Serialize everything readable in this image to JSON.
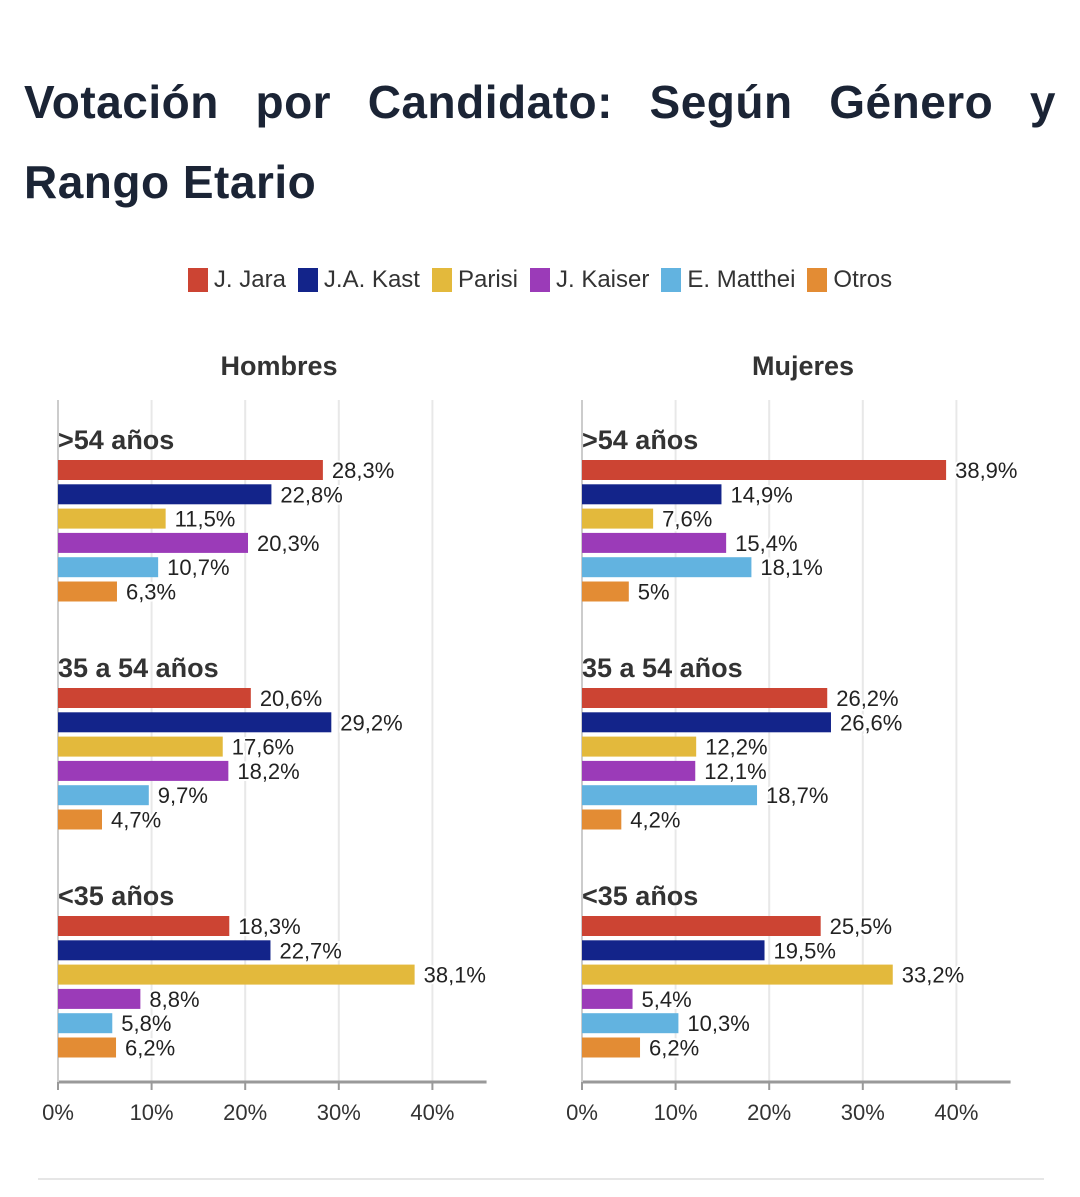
{
  "title": "Votación por Candidato: Según Género y Rango Etario",
  "legend": [
    {
      "name": "J. Jara",
      "color": "#cc4433"
    },
    {
      "name": "J.A. Kast",
      "color": "#13248a"
    },
    {
      "name": "Parisi",
      "color": "#e3b93c"
    },
    {
      "name": "J. Kaiser",
      "color": "#9b3bb8"
    },
    {
      "name": "E. Matthei",
      "color": "#62b3e0"
    },
    {
      "name": "Otros",
      "color": "#e38c34"
    }
  ],
  "chart_data": [
    {
      "type": "bar",
      "orientation": "horizontal",
      "title": "Hombres",
      "xlim": [
        0,
        46
      ],
      "xticks": [
        "0%",
        "10%",
        "20%",
        "30%",
        "40%"
      ],
      "grid": true,
      "groups": [
        {
          "label": ">54 años",
          "values": [
            28.3,
            22.8,
            11.5,
            20.3,
            10.7,
            6.3
          ],
          "labels": [
            "28,3%",
            "22,8%",
            "11,5%",
            "20,3%",
            "10,7%",
            "6,3%"
          ]
        },
        {
          "label": "35 a 54 años",
          "values": [
            20.6,
            29.2,
            17.6,
            18.2,
            9.7,
            4.7
          ],
          "labels": [
            "20,6%",
            "29,2%",
            "17,6%",
            "18,2%",
            "9,7%",
            "4,7%"
          ]
        },
        {
          "label": "<35 años",
          "values": [
            18.3,
            22.7,
            38.1,
            8.8,
            5.8,
            6.2
          ],
          "labels": [
            "18,3%",
            "22,7%",
            "38,1%",
            "8,8%",
            "5,8%",
            "6,2%"
          ]
        }
      ]
    },
    {
      "type": "bar",
      "orientation": "horizontal",
      "title": "Mujeres",
      "xlim": [
        0,
        46
      ],
      "xticks": [
        "0%",
        "10%",
        "20%",
        "30%",
        "40%"
      ],
      "grid": true,
      "groups": [
        {
          "label": ">54 años",
          "values": [
            38.9,
            14.9,
            7.6,
            15.4,
            18.1,
            5
          ],
          "labels": [
            "38,9%",
            "14,9%",
            "7,6%",
            "15,4%",
            "18,1%",
            "5%"
          ]
        },
        {
          "label": "35 a 54 años",
          "values": [
            26.2,
            26.6,
            12.2,
            12.1,
            18.7,
            4.2
          ],
          "labels": [
            "26,2%",
            "26,6%",
            "12,2%",
            "12,1%",
            "18,7%",
            "4,2%"
          ]
        },
        {
          "label": "<35 años",
          "values": [
            25.5,
            19.5,
            33.2,
            5.4,
            10.3,
            6.2
          ],
          "labels": [
            "25,5%",
            "19,5%",
            "33,2%",
            "5,4%",
            "10,3%",
            "6,2%"
          ]
        }
      ]
    }
  ]
}
